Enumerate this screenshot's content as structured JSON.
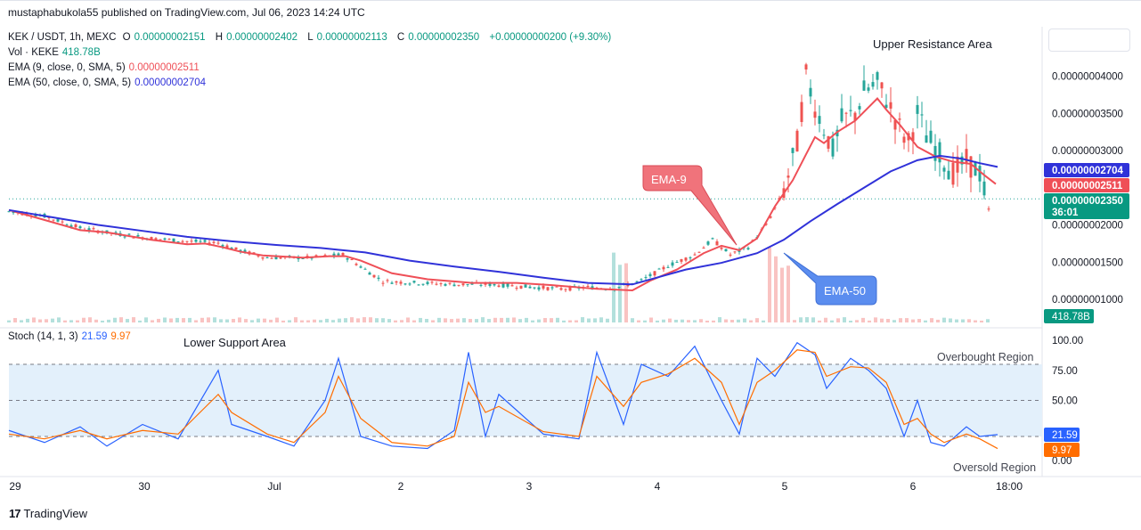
{
  "header": {
    "publisher": "mustaphabukola55 published on TradingView.com, Jul 06, 2023 14:24 UTC"
  },
  "legend": {
    "symbol": "KEK / USDT, 1h, MEXC",
    "o_label": "O",
    "o_val": "0.00000002151",
    "h_label": "H",
    "h_val": "0.00000002402",
    "l_label": "L",
    "l_val": "0.00000002113",
    "c_label": "C",
    "c_val": "0.00000002350",
    "change": "+0.00000000200 (+9.30%)",
    "vol_label": "Vol · KEKE",
    "vol_val": "418.78B",
    "ema9_label": "EMA (9, close, 0, SMA, 5)",
    "ema9_val": "0.00000002511",
    "ema50_label": "EMA (50, close, 0, SMA, 5)",
    "ema50_val": "0.00000002704",
    "stoch_label": "Stoch (14, 1, 3)",
    "stoch_k": "21.59",
    "stoch_d": "9.97"
  },
  "colors": {
    "up": "#26a69a",
    "down": "#ef5350",
    "ema9": "#ef4f57",
    "ema50": "#3032d9",
    "stochK": "#2962ff",
    "stochD": "#ff6d00",
    "band": "#e3f0fb",
    "ema9_callout": "#f0737b",
    "ema50_callout": "#5b8def"
  },
  "annotations": {
    "upper_resistance": "Upper Resistance Area",
    "lower_support": "Lower Support Area",
    "overbought": "Overbought Region",
    "oversold": "Oversold Region",
    "ema9_tag": "EMA-9",
    "ema50_tag": "EMA-50"
  },
  "price_axis": {
    "ticks": [
      "0.00000004000",
      "0.00000003500",
      "0.00000003000",
      "0.00000002000",
      "0.00000001500",
      "0.00000001000"
    ],
    "badge_ema50": "0.00000002704",
    "badge_ema9": "0.00000002511",
    "badge_close": "0.00000002350",
    "badge_countdown": "36:01",
    "badge_volume": "418.78B"
  },
  "stoch_axis": {
    "ticks": [
      "100.00",
      "75.00",
      "50.00",
      "0.00"
    ],
    "badge_k": "21.59",
    "badge_d": "9.97"
  },
  "time_axis": {
    "labels": [
      "29",
      "30",
      "Jul",
      "2",
      "3",
      "4",
      "5",
      "6",
      "18:00"
    ]
  },
  "footer": {
    "brand": "TradingView"
  },
  "chart_data": {
    "type": "candlestick",
    "symbol": "KEK / USDT",
    "interval": "1h",
    "ylim": [
      7.5e-09,
      4.45e-08
    ],
    "ema_series": [
      {
        "name": "EMA (9, close, 0, SMA, 5)",
        "points": [
          [
            0,
            2.2
          ],
          [
            30,
            2.1
          ],
          [
            80,
            1.93
          ],
          [
            110,
            1.9
          ],
          [
            160,
            1.8
          ],
          [
            200,
            1.74
          ],
          [
            220,
            1.75
          ],
          [
            240,
            1.7
          ],
          [
            260,
            1.64
          ],
          [
            285,
            1.59
          ],
          [
            330,
            1.56
          ],
          [
            360,
            1.58
          ],
          [
            378,
            1.58
          ],
          [
            395,
            1.52
          ],
          [
            430,
            1.35
          ],
          [
            470,
            1.27
          ],
          [
            520,
            1.22
          ],
          [
            570,
            1.22
          ],
          [
            610,
            1.19
          ],
          [
            660,
            1.14
          ],
          [
            700,
            1.12
          ],
          [
            720,
            1.25
          ],
          [
            750,
            1.4
          ],
          [
            780,
            1.62
          ],
          [
            800,
            1.72
          ],
          [
            820,
            1.66
          ],
          [
            840,
            1.82
          ],
          [
            860,
            2.25
          ],
          [
            880,
            2.6
          ],
          [
            895,
            2.95
          ],
          [
            905,
            3.18
          ],
          [
            915,
            3.1
          ],
          [
            930,
            3.25
          ],
          [
            950,
            3.4
          ],
          [
            975,
            3.7
          ],
          [
            985,
            3.55
          ],
          [
            1000,
            3.35
          ],
          [
            1020,
            3.05
          ],
          [
            1040,
            2.92
          ],
          [
            1060,
            2.85
          ],
          [
            1080,
            2.82
          ],
          [
            1095,
            2.67
          ],
          [
            1108,
            2.55
          ]
        ]
      },
      {
        "name": "EMA (50, close, 0, SMA, 5)",
        "points": [
          [
            0,
            2.2
          ],
          [
            50,
            2.1
          ],
          [
            100,
            2.0
          ],
          [
            150,
            1.92
          ],
          [
            200,
            1.84
          ],
          [
            250,
            1.78
          ],
          [
            300,
            1.73
          ],
          [
            350,
            1.69
          ],
          [
            400,
            1.63
          ],
          [
            450,
            1.52
          ],
          [
            500,
            1.44
          ],
          [
            550,
            1.37
          ],
          [
            600,
            1.29
          ],
          [
            650,
            1.22
          ],
          [
            700,
            1.2
          ],
          [
            730,
            1.3
          ],
          [
            760,
            1.4
          ],
          [
            800,
            1.49
          ],
          [
            840,
            1.62
          ],
          [
            870,
            1.8
          ],
          [
            900,
            2.05
          ],
          [
            930,
            2.28
          ],
          [
            960,
            2.5
          ],
          [
            990,
            2.72
          ],
          [
            1020,
            2.87
          ],
          [
            1045,
            2.93
          ],
          [
            1070,
            2.89
          ],
          [
            1090,
            2.83
          ],
          [
            1110,
            2.78
          ]
        ]
      }
    ],
    "candles_anchor_prices": [
      [
        0,
        2.18
      ],
      [
        40,
        2.12
      ],
      [
        80,
        1.96
      ],
      [
        120,
        1.88
      ],
      [
        160,
        1.82
      ],
      [
        200,
        1.78
      ],
      [
        235,
        1.76
      ],
      [
        255,
        1.67
      ],
      [
        290,
        1.56
      ],
      [
        340,
        1.56
      ],
      [
        375,
        1.6
      ],
      [
        400,
        1.4
      ],
      [
        420,
        1.24
      ],
      [
        460,
        1.22
      ],
      [
        500,
        1.2
      ],
      [
        540,
        1.2
      ],
      [
        580,
        1.17
      ],
      [
        620,
        1.14
      ],
      [
        650,
        1.16
      ],
      [
        680,
        1.15
      ],
      [
        710,
        1.25
      ],
      [
        740,
        1.45
      ],
      [
        770,
        1.6
      ],
      [
        790,
        1.8
      ],
      [
        810,
        1.6
      ],
      [
        830,
        1.7
      ],
      [
        850,
        2.0
      ],
      [
        870,
        2.45
      ],
      [
        885,
        3.1
      ],
      [
        895,
        4.0
      ],
      [
        905,
        3.6
      ],
      [
        915,
        3.3
      ],
      [
        925,
        3.0
      ],
      [
        935,
        3.4
      ],
      [
        950,
        3.5
      ],
      [
        960,
        3.8
      ],
      [
        975,
        3.9
      ],
      [
        985,
        3.7
      ],
      [
        1000,
        3.3
      ],
      [
        1010,
        3.1
      ],
      [
        1020,
        3.5
      ],
      [
        1030,
        3.2
      ],
      [
        1045,
        2.95
      ],
      [
        1060,
        2.7
      ],
      [
        1075,
        2.85
      ],
      [
        1090,
        2.7
      ],
      [
        1100,
        2.2
      ],
      [
        1110,
        2.35
      ]
    ],
    "volume_spikes": [
      [
        680,
        "high"
      ],
      [
        690,
        "high"
      ],
      [
        860,
        "high"
      ],
      [
        870,
        "high"
      ]
    ],
    "stochastic": {
      "name": "Stoch (14, 1, 3)",
      "ylim": [
        0,
        100
      ],
      "bands": {
        "overbought": 80,
        "middle": 50,
        "oversold": 20
      },
      "k": [
        [
          0,
          25
        ],
        [
          40,
          15
        ],
        [
          80,
          28
        ],
        [
          110,
          12
        ],
        [
          150,
          30
        ],
        [
          190,
          18
        ],
        [
          235,
          75
        ],
        [
          250,
          30
        ],
        [
          290,
          20
        ],
        [
          320,
          12
        ],
        [
          355,
          50
        ],
        [
          370,
          85
        ],
        [
          395,
          20
        ],
        [
          430,
          12
        ],
        [
          470,
          10
        ],
        [
          500,
          25
        ],
        [
          516,
          90
        ],
        [
          535,
          20
        ],
        [
          550,
          55
        ],
        [
          600,
          22
        ],
        [
          640,
          18
        ],
        [
          660,
          90
        ],
        [
          690,
          30
        ],
        [
          710,
          80
        ],
        [
          740,
          70
        ],
        [
          770,
          95
        ],
        [
          800,
          50
        ],
        [
          820,
          22
        ],
        [
          840,
          85
        ],
        [
          860,
          70
        ],
        [
          885,
          98
        ],
        [
          905,
          88
        ],
        [
          918,
          60
        ],
        [
          945,
          85
        ],
        [
          965,
          75
        ],
        [
          985,
          60
        ],
        [
          1005,
          20
        ],
        [
          1020,
          50
        ],
        [
          1035,
          15
        ],
        [
          1050,
          12
        ],
        [
          1075,
          28
        ],
        [
          1090,
          20
        ],
        [
          1110,
          21.59
        ]
      ],
      "d": [
        [
          0,
          22
        ],
        [
          40,
          18
        ],
        [
          80,
          25
        ],
        [
          110,
          18
        ],
        [
          150,
          25
        ],
        [
          190,
          22
        ],
        [
          235,
          55
        ],
        [
          250,
          40
        ],
        [
          290,
          22
        ],
        [
          320,
          15
        ],
        [
          355,
          40
        ],
        [
          370,
          70
        ],
        [
          395,
          35
        ],
        [
          430,
          15
        ],
        [
          470,
          12
        ],
        [
          500,
          20
        ],
        [
          516,
          65
        ],
        [
          535,
          40
        ],
        [
          550,
          45
        ],
        [
          600,
          24
        ],
        [
          640,
          20
        ],
        [
          660,
          70
        ],
        [
          690,
          45
        ],
        [
          710,
          65
        ],
        [
          740,
          72
        ],
        [
          770,
          85
        ],
        [
          800,
          65
        ],
        [
          820,
          30
        ],
        [
          840,
          65
        ],
        [
          860,
          75
        ],
        [
          885,
          92
        ],
        [
          905,
          90
        ],
        [
          918,
          70
        ],
        [
          945,
          78
        ],
        [
          965,
          77
        ],
        [
          985,
          65
        ],
        [
          1005,
          30
        ],
        [
          1020,
          35
        ],
        [
          1035,
          22
        ],
        [
          1050,
          15
        ],
        [
          1075,
          22
        ],
        [
          1090,
          18
        ],
        [
          1110,
          9.97
        ]
      ]
    }
  }
}
